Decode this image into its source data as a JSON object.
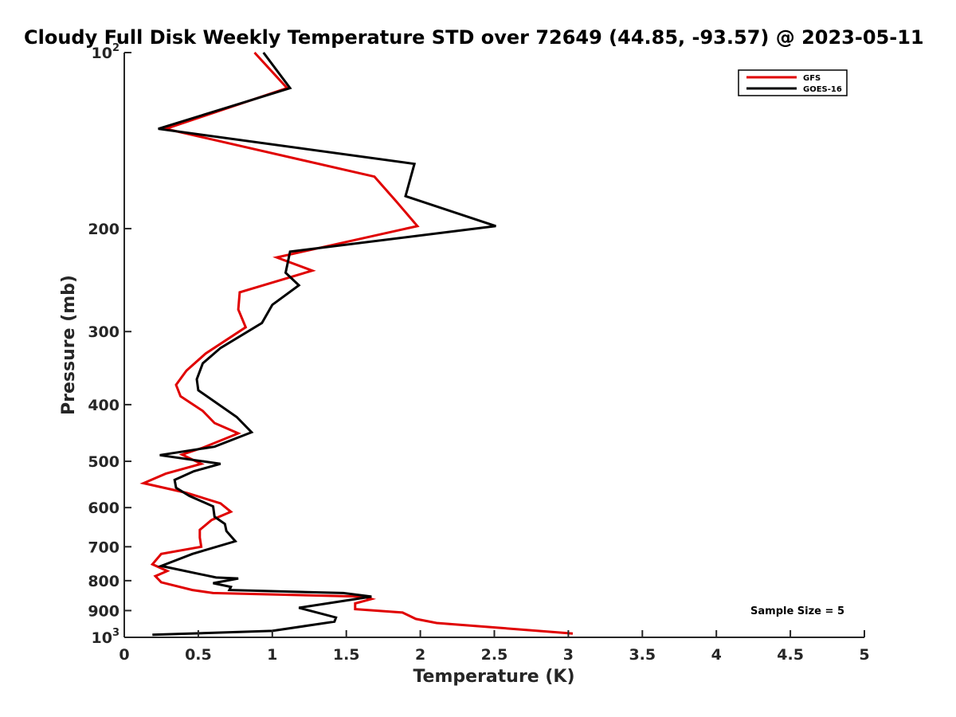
{
  "chart_data": {
    "type": "line",
    "title": "Cloudy Full Disk Weekly Temperature STD over 72649 (44.85, -93.57) @ 2023-05-11",
    "xlabel": "Temperature (K)",
    "ylabel": "Pressure (mb)",
    "xlim": [
      0,
      5
    ],
    "ylim": [
      100,
      1000
    ],
    "y_scale": "log",
    "y_reversed": true,
    "x_ticks": [
      "0",
      "0.5",
      "1",
      "1.5",
      "2",
      "2.5",
      "3",
      "3.5",
      "4",
      "4.5",
      "5"
    ],
    "y_ticks": [
      {
        "value": 100,
        "label": "10",
        "sup": "2"
      },
      {
        "value": 200,
        "label": "200"
      },
      {
        "value": 300,
        "label": "300"
      },
      {
        "value": 400,
        "label": "400"
      },
      {
        "value": 500,
        "label": "500"
      },
      {
        "value": 600,
        "label": "600"
      },
      {
        "value": 700,
        "label": "700"
      },
      {
        "value": 800,
        "label": "800"
      },
      {
        "value": 900,
        "label": "900"
      },
      {
        "value": 1000,
        "label": "10",
        "sup": "3"
      }
    ],
    "grid": false,
    "legend_position": "top-right",
    "annotation": "Sample Size = 5",
    "series": [
      {
        "name": "GFS",
        "color": "#e00000",
        "points": [
          [
            0.88,
            100
          ],
          [
            1.1,
            115
          ],
          [
            0.28,
            135
          ],
          [
            1.69,
            163
          ],
          [
            1.84,
            180
          ],
          [
            1.98,
            198
          ],
          [
            1.03,
            224
          ],
          [
            1.27,
            236
          ],
          [
            0.78,
            257
          ],
          [
            0.77,
            275
          ],
          [
            0.82,
            295
          ],
          [
            0.55,
            327
          ],
          [
            0.42,
            350
          ],
          [
            0.35,
            370
          ],
          [
            0.38,
            387
          ],
          [
            0.53,
            410
          ],
          [
            0.61,
            430
          ],
          [
            0.77,
            448
          ],
          [
            0.53,
            474
          ],
          [
            0.39,
            487
          ],
          [
            0.52,
            505
          ],
          [
            0.28,
            525
          ],
          [
            0.13,
            545
          ],
          [
            0.42,
            566
          ],
          [
            0.65,
            590
          ],
          [
            0.72,
            610
          ],
          [
            0.59,
            630
          ],
          [
            0.51,
            655
          ],
          [
            0.51,
            675
          ],
          [
            0.52,
            700
          ],
          [
            0.25,
            720
          ],
          [
            0.19,
            750
          ],
          [
            0.29,
            770
          ],
          [
            0.21,
            786
          ],
          [
            0.25,
            805
          ],
          [
            0.46,
            830
          ],
          [
            0.6,
            840
          ],
          [
            1.61,
            852
          ],
          [
            1.67,
            860
          ],
          [
            1.56,
            875
          ],
          [
            1.56,
            895
          ],
          [
            1.88,
            907
          ],
          [
            1.97,
            930
          ],
          [
            2.11,
            945
          ],
          [
            3.03,
            985
          ]
        ]
      },
      {
        "name": "GOES-16",
        "color": "#000000",
        "points": [
          [
            0.94,
            100
          ],
          [
            1.12,
            115
          ],
          [
            0.23,
            135
          ],
          [
            1.96,
            155
          ],
          [
            1.9,
            176
          ],
          [
            2.51,
            198
          ],
          [
            1.12,
            219
          ],
          [
            1.09,
            238
          ],
          [
            1.18,
            250
          ],
          [
            1.0,
            270
          ],
          [
            0.93,
            290
          ],
          [
            0.65,
            320
          ],
          [
            0.53,
            340
          ],
          [
            0.49,
            362
          ],
          [
            0.5,
            378
          ],
          [
            0.76,
            420
          ],
          [
            0.86,
            446
          ],
          [
            0.61,
            472
          ],
          [
            0.24,
            488
          ],
          [
            0.65,
            505
          ],
          [
            0.47,
            520
          ],
          [
            0.34,
            538
          ],
          [
            0.35,
            555
          ],
          [
            0.44,
            573
          ],
          [
            0.6,
            597
          ],
          [
            0.61,
            622
          ],
          [
            0.68,
            640
          ],
          [
            0.69,
            658
          ],
          [
            0.75,
            685
          ],
          [
            0.46,
            720
          ],
          [
            0.25,
            755
          ],
          [
            0.62,
            790
          ],
          [
            0.77,
            793
          ],
          [
            0.6,
            808
          ],
          [
            0.72,
            820
          ],
          [
            0.71,
            830
          ],
          [
            1.48,
            840
          ],
          [
            1.67,
            852
          ],
          [
            1.18,
            890
          ],
          [
            1.43,
            925
          ],
          [
            1.42,
            940
          ],
          [
            1.0,
            975
          ],
          [
            0.19,
            990
          ]
        ]
      }
    ]
  }
}
